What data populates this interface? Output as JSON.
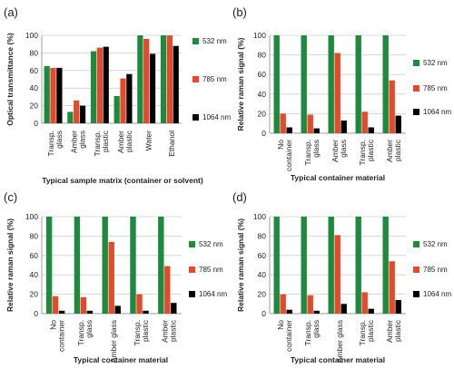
{
  "figure": {
    "nm_unit": "nm",
    "colors": {
      "532 nm": "#1e8a3e",
      "785 nm": "#e24a2b",
      "1064 nm": "#000000"
    }
  },
  "chart_data": [
    {
      "panel": "(a)",
      "type": "bar",
      "ylabel": "Optical transmittance (%)",
      "xlabel": "Typical sample matrix (container or solvent)",
      "categories": [
        [
          "Transp.",
          "glass"
        ],
        [
          "Amber",
          "glass"
        ],
        [
          "Transp.",
          "plastic"
        ],
        [
          "Amber",
          "plastic"
        ],
        [
          "Water"
        ],
        [
          "Ethanol"
        ]
      ],
      "ylim": [
        0,
        100
      ],
      "yticks": [
        0,
        20,
        40,
        60,
        80,
        100
      ],
      "grid": true,
      "legend_position": "right",
      "series": [
        {
          "name": "532 nm",
          "color": "#1e8a3e",
          "values": [
            65,
            13,
            82,
            31,
            100,
            100
          ]
        },
        {
          "name": "785 nm",
          "color": "#e24a2b",
          "values": [
            63,
            26,
            86,
            51,
            96,
            100
          ]
        },
        {
          "name": "1064 nm",
          "color": "#000000",
          "values": [
            63,
            20,
            87,
            56,
            79,
            88
          ]
        }
      ]
    },
    {
      "panel": "(b)",
      "type": "bar",
      "ylabel": "Relative raman signal (%)",
      "xlabel": "Typical container material",
      "categories": [
        [
          "No",
          "container"
        ],
        [
          "Transp.",
          "glass"
        ],
        [
          "Amber",
          "glass"
        ],
        [
          "Transp.",
          "plastic"
        ],
        [
          "Amber",
          "plastic"
        ]
      ],
      "ylim": [
        0,
        100
      ],
      "yticks": [
        0,
        20,
        40,
        60,
        80,
        100
      ],
      "grid": true,
      "legend_position": "right",
      "series": [
        {
          "name": "532 nm",
          "color": "#1e8a3e",
          "values": [
            100,
            100,
            100,
            100,
            100
          ]
        },
        {
          "name": "785 nm",
          "color": "#e24a2b",
          "values": [
            20,
            19,
            82,
            22,
            54
          ]
        },
        {
          "name": "1064 nm",
          "color": "#000000",
          "values": [
            6,
            5,
            13,
            6,
            18
          ]
        }
      ]
    },
    {
      "panel": "(c)",
      "type": "bar",
      "ylabel": "Relative raman signal (%)",
      "xlabel": "Typical container material",
      "categories": [
        [
          "No",
          "container"
        ],
        [
          "Transp.",
          "glass"
        ],
        [
          "Amber glass"
        ],
        [
          "Transp.",
          "plastic"
        ],
        [
          "Amber",
          "plastic"
        ]
      ],
      "ylim": [
        0,
        100
      ],
      "yticks": [
        0,
        20,
        40,
        60,
        80,
        100
      ],
      "grid": true,
      "legend_position": "right",
      "series": [
        {
          "name": "532 nm",
          "color": "#1e8a3e",
          "values": [
            100,
            100,
            100,
            100,
            100
          ]
        },
        {
          "name": "785 nm",
          "color": "#e24a2b",
          "values": [
            18,
            17,
            74,
            20,
            49
          ]
        },
        {
          "name": "1064 nm",
          "color": "#000000",
          "values": [
            3,
            3,
            8,
            3,
            11
          ]
        }
      ]
    },
    {
      "panel": "(d)",
      "type": "bar",
      "ylabel": "Relative raman signal (%)",
      "xlabel": "Typical container material",
      "categories": [
        [
          "No",
          "container"
        ],
        [
          "Transp.",
          "glass"
        ],
        [
          "Amber glass"
        ],
        [
          "Transp.",
          "plastic"
        ],
        [
          "Amber",
          "plastic"
        ]
      ],
      "ylim": [
        0,
        100
      ],
      "yticks": [
        0,
        20,
        40,
        60,
        80,
        100
      ],
      "grid": true,
      "legend_position": "right",
      "series": [
        {
          "name": "532 nm",
          "color": "#1e8a3e",
          "values": [
            100,
            100,
            100,
            100,
            100
          ]
        },
        {
          "name": "785 nm",
          "color": "#e24a2b",
          "values": [
            20,
            19,
            81,
            22,
            54
          ]
        },
        {
          "name": "1064 nm",
          "color": "#000000",
          "values": [
            4,
            3,
            10,
            5,
            14
          ]
        }
      ]
    }
  ]
}
